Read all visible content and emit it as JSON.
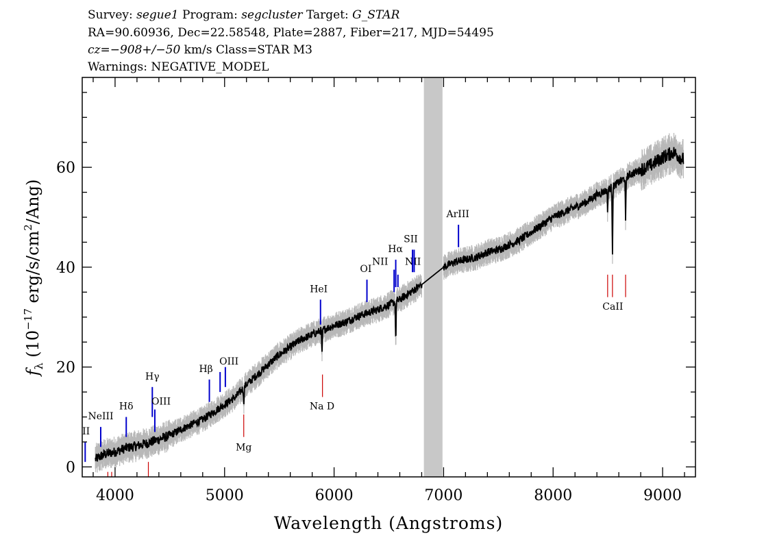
{
  "header": {
    "survey_label": "Survey: ",
    "survey_value": "segue1",
    "program_label": " Program: ",
    "program_value": "segcluster",
    "target_label": " Target: ",
    "target_value": "G_STAR",
    "line2": "RA=90.60936, Dec=22.58548, Plate=2887, Fiber=217, MJD=54495",
    "cz_label": "cz",
    "cz_eq": "=",
    "cz_value": "−908+/−50",
    "cz_rest": " km/s Class=STAR M3",
    "line4": "Warnings: NEGATIVE_MODEL"
  },
  "colors": {
    "spectrum": "#000000",
    "noise_band": "#b8b8b8",
    "masked_region": "#c8c8c8",
    "emission_line": "#0000cc",
    "absorption_line": "#cc0000"
  },
  "chart_data": {
    "type": "line",
    "xlabel": "Wavelength (Angstroms)",
    "ylabel_main": "f",
    "ylabel_sub": "λ",
    "ylabel_rest": " (10",
    "ylabel_exp": "−17",
    "ylabel_rest2": " erg/s/cm",
    "ylabel_exp2": "2",
    "ylabel_rest3": "/Ang)",
    "xlim": [
      3700,
      9300
    ],
    "ylim": [
      -2,
      78
    ],
    "xticks": [
      4000,
      5000,
      6000,
      7000,
      8000,
      9000
    ],
    "xtick_labels": [
      "4000",
      "5000",
      "6000",
      "7000",
      "8000",
      "9000"
    ],
    "yticks": [
      0,
      20,
      40,
      60
    ],
    "ytick_labels": [
      "0",
      "20",
      "40",
      "60"
    ],
    "masked_region": [
      6820,
      6990
    ],
    "series": [
      {
        "x": [
          3820,
          3900,
          4000,
          4100,
          4200,
          4300,
          4400,
          4500,
          4600,
          4700,
          4800,
          4900,
          5000,
          5100,
          5200,
          5300,
          5400,
          5500,
          5600,
          5700,
          5800,
          5900,
          6000,
          6100,
          6200,
          6300,
          6400,
          6500,
          6600,
          6700,
          6800,
          7000,
          7100,
          7200,
          7300,
          7400,
          7500,
          7600,
          7700,
          7800,
          7900,
          8000,
          8100,
          8200,
          8300,
          8400,
          8500,
          8600,
          8700,
          8800,
          8900,
          9000,
          9100,
          9190
        ],
        "y": [
          1.5,
          2.5,
          3.0,
          3.8,
          4.2,
          4.8,
          5.5,
          6.3,
          7.5,
          8.5,
          9.5,
          11.0,
          12.5,
          14.0,
          16.5,
          18.5,
          20.5,
          22.5,
          24.0,
          25.5,
          26.5,
          27.5,
          28.3,
          29.0,
          30.0,
          30.8,
          31.5,
          32.5,
          33.5,
          35.0,
          36.5,
          40.0,
          41.0,
          41.5,
          42.0,
          43.0,
          43.5,
          44.5,
          45.5,
          47.0,
          48.5,
          50.0,
          51.0,
          52.0,
          53.0,
          54.5,
          55.5,
          57.0,
          58.5,
          59.5,
          60.5,
          62.0,
          63.0,
          61.5
        ]
      }
    ],
    "absorption_dips": [
      {
        "x": 5175,
        "depth": 3.0
      },
      {
        "x": 5890,
        "depth": 5.0
      },
      {
        "x": 6563,
        "depth": 8.0
      },
      {
        "x": 8498,
        "depth": 4.0
      },
      {
        "x": 8542,
        "depth": 13.0
      },
      {
        "x": 8662,
        "depth": 9.0
      }
    ],
    "line_markers": [
      {
        "label": "II",
        "x": 3727,
        "y1": 1,
        "y2": 5,
        "label_y": 6.5,
        "color": "emission",
        "label_x": 3735
      },
      {
        "label": "NeIII",
        "x": 3869,
        "y1": 4,
        "y2": 8,
        "label_y": 9.5,
        "color": "emission",
        "label_x": 3869
      },
      {
        "label": "Hδ",
        "x": 4102,
        "y1": 6,
        "y2": 10,
        "label_y": 11.5,
        "color": "emission",
        "label_x": 4102
      },
      {
        "label": "Hγ",
        "x": 4340,
        "y1": 10,
        "y2": 16,
        "label_y": 17.5,
        "color": "emission",
        "label_x": 4340
      },
      {
        "label": "OIII",
        "x": 4363,
        "y1": 7,
        "y2": 11.5,
        "label_y": 12.5,
        "color": "emission",
        "label_x": 4420
      },
      {
        "label": "Hβ",
        "x": 4861,
        "y1": 13,
        "y2": 17.5,
        "label_y": 19,
        "color": "emission",
        "label_x": 4830
      },
      {
        "label": "OIII",
        "x": 4959,
        "y1": 15,
        "y2": 19,
        "label_y": 20.5,
        "color": "emission",
        "label_x": 5040
      },
      {
        "label": "OIII_b",
        "x": 5007,
        "y1": 16,
        "y2": 20,
        "label_y": null,
        "color": "emission",
        "label_x": null
      },
      {
        "label": "HeI",
        "x": 5876,
        "y1": 28.5,
        "y2": 33.5,
        "label_y": 35,
        "color": "emission",
        "label_x": 5860
      },
      {
        "label": "OI",
        "x": 6300,
        "y1": 33,
        "y2": 37.5,
        "label_y": 39,
        "color": "emission",
        "label_x": 6290
      },
      {
        "label": "NII",
        "x": 6548,
        "y1": 35,
        "y2": 39.5,
        "label_y": 40.5,
        "color": "emission",
        "label_x": 6420
      },
      {
        "label": "Hα",
        "x": 6563,
        "y1": 36,
        "y2": 41.5,
        "label_y": 43,
        "color": "emission",
        "label_x": 6560
      },
      {
        "label": "NII",
        "x": 6583,
        "y1": 36,
        "y2": 38.5,
        "label_y": 40.5,
        "color": "emission",
        "label_x": 6720
      },
      {
        "label": "SII",
        "x": 6716,
        "y1": 39,
        "y2": 43.5,
        "label_y": 45,
        "color": "emission",
        "label_x": 6700
      },
      {
        "label": "SII_b",
        "x": 6731,
        "y1": 39,
        "y2": 43.5,
        "label_y": null,
        "color": "emission",
        "label_x": null
      },
      {
        "label": "ArIII",
        "x": 7136,
        "y1": 44,
        "y2": 48.5,
        "label_y": 50,
        "color": "emission",
        "label_x": 7130
      },
      {
        "label": "",
        "x": 3934,
        "y1": -2,
        "y2": -1,
        "label_y": null,
        "color": "absorption",
        "label_x": null
      },
      {
        "label": "",
        "x": 3969,
        "y1": -2,
        "y2": -1,
        "label_y": null,
        "color": "absorption",
        "label_x": null
      },
      {
        "label": "",
        "x": 4304,
        "y1": -2,
        "y2": 1,
        "label_y": null,
        "color": "absorption",
        "label_x": null
      },
      {
        "label": "Mg",
        "x": 5175,
        "y1": 6,
        "y2": 10.5,
        "label_y": 3.3,
        "color": "absorption",
        "label_x": 5175
      },
      {
        "label": "Na D",
        "x": 5894,
        "y1": 14,
        "y2": 18.5,
        "label_y": 11.5,
        "color": "absorption",
        "label_x": 5890
      },
      {
        "label": "CaII",
        "x": 8498,
        "y1": 34,
        "y2": 38.5,
        "label_y": 31.5,
        "color": "absorption",
        "label_x": 8545
      },
      {
        "label": "",
        "x": 8542,
        "y1": 34,
        "y2": 38.5,
        "label_y": null,
        "color": "absorption",
        "label_x": null
      },
      {
        "label": "",
        "x": 8662,
        "y1": 34,
        "y2": 38.5,
        "label_y": null,
        "color": "absorption",
        "label_x": null
      }
    ]
  }
}
